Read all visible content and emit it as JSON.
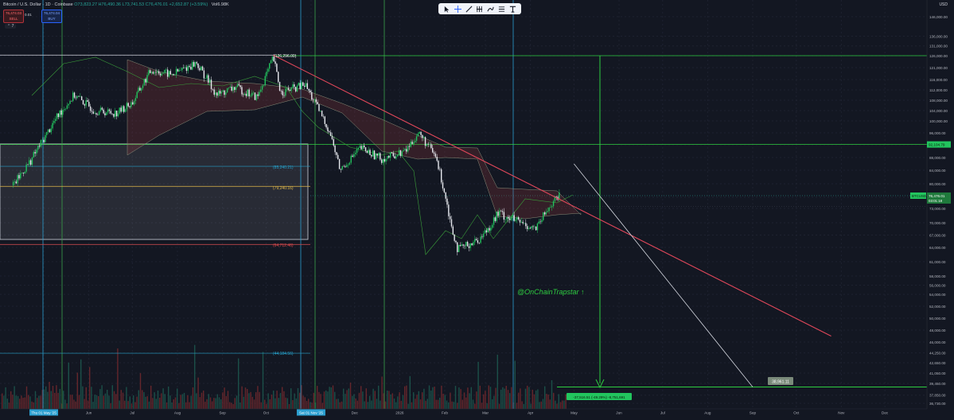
{
  "legend": {
    "symbol": "Bitcoin / U.S. Dollar · 1D · Coinbase",
    "ohlc": "O73,823.27 H76,490.36 L73,741.53 C76,476.01 +2,652.87 (+3.59%)",
    "volume": "Vol6.98K",
    "sell_price": "76,474.03",
    "sell_label": "SELL",
    "spread": "0.01",
    "buy_price": "76,474.04",
    "buy_label": "BUY",
    "collapse": "⌃ 7"
  },
  "currency": "USD",
  "toolbar": [
    "cursor-icon",
    "crosshair-icon",
    "trendline-icon",
    "pitchfork-icon",
    "brush-icon",
    "fib-icon",
    "text-icon"
  ],
  "watermark": "@OnChainTrapstar ↑",
  "chart_data": {
    "type": "candlestick",
    "title": "Bitcoin / U.S. Dollar · 1D · Coinbase",
    "price_axis": [
      "146,000.00",
      "136,000.00",
      "131,000.00",
      "126,000.00",
      "121,000.00",
      "116,000.00",
      "112,000.00",
      "108,000.00",
      "104,000.00",
      "100,000.00",
      "96,000.00",
      "92,000.00",
      "88,000.00",
      "84,000.00",
      "80,000.00",
      "76,000.00",
      "73,000.00",
      "70,000.00",
      "67,000.00",
      "64,000.00",
      "61,000.00",
      "58,000.00",
      "56,000.00",
      "54,000.00",
      "52,000.00",
      "50,000.00",
      "48,000.00",
      "46,000.00",
      "44,250.00",
      "42,650.00",
      "41,050.00",
      "39,450.00",
      "37,850.00",
      "36,730.00"
    ],
    "time_axis": [
      "Thu 01 May '25",
      "Jun",
      "Jul",
      "Aug",
      "Sep",
      "Oct",
      "Sat 01 Nov '25",
      "Dec",
      "2026",
      "Feb",
      "Mar",
      "Apr",
      "May",
      "Jun",
      "Jul",
      "Aug",
      "Sep",
      "Oct",
      "Nov",
      "Dec"
    ],
    "last_price": 76476.01,
    "annotations": {
      "ath_label": "(126,296.00)",
      "level_85": "(85,240.21)",
      "level_79": "(79,240.16)",
      "level_64": "(64,712.46)",
      "level_44": "(44,184.56)",
      "target_label": "38,961.11",
      "measure_label": "-37,516.51 (-49.29%) -8,751,691",
      "right_green_label": "92,104.79",
      "btc_label": "BTCUSD",
      "btc_price": "76,476.01",
      "btc_countdown": "03:01:18"
    },
    "key_levels": [
      126000,
      92104.79,
      85240.21,
      79240.16,
      64712.46,
      44184.56,
      38961.11
    ],
    "trend_line": {
      "from": {
        "date": "2025-10-06",
        "price": 126296
      },
      "to": {
        "date": "2026-10-25",
        "price": 47000
      }
    },
    "projection_line": {
      "from": {
        "date": "2026-05-01",
        "price": 86000
      },
      "to": {
        "date": "2026-09-01",
        "price": 38961
      }
    },
    "price_path": [
      {
        "date": "2025-04-10",
        "price": 79500
      },
      {
        "date": "2025-04-22",
        "price": 87000
      },
      {
        "date": "2025-05-01",
        "price": 94000
      },
      {
        "date": "2025-05-12",
        "price": 103000
      },
      {
        "date": "2025-05-22",
        "price": 110000
      },
      {
        "date": "2025-06-05",
        "price": 104000
      },
      {
        "date": "2025-06-20",
        "price": 103000
      },
      {
        "date": "2025-07-01",
        "price": 107000
      },
      {
        "date": "2025-07-14",
        "price": 120000
      },
      {
        "date": "2025-07-28",
        "price": 118000
      },
      {
        "date": "2025-08-14",
        "price": 123000
      },
      {
        "date": "2025-08-28",
        "price": 110000
      },
      {
        "date": "2025-09-10",
        "price": 113000
      },
      {
        "date": "2025-09-25",
        "price": 109000
      },
      {
        "date": "2025-10-06",
        "price": 125000
      },
      {
        "date": "2025-10-11",
        "price": 111000
      },
      {
        "date": "2025-10-28",
        "price": 114000
      },
      {
        "date": "2025-11-14",
        "price": 96000
      },
      {
        "date": "2025-11-21",
        "price": 84000
      },
      {
        "date": "2025-12-05",
        "price": 91000
      },
      {
        "date": "2025-12-20",
        "price": 87500
      },
      {
        "date": "2026-01-05",
        "price": 90000
      },
      {
        "date": "2026-01-14",
        "price": 96000
      },
      {
        "date": "2026-01-26",
        "price": 88000
      },
      {
        "date": "2026-02-05",
        "price": 70000
      },
      {
        "date": "2026-02-10",
        "price": 63500
      },
      {
        "date": "2026-02-25",
        "price": 66000
      },
      {
        "date": "2026-03-10",
        "price": 72000
      },
      {
        "date": "2026-03-25",
        "price": 70000
      },
      {
        "date": "2026-04-05",
        "price": 68500
      },
      {
        "date": "2026-04-15",
        "price": 74000
      },
      {
        "date": "2026-04-21",
        "price": 76476
      }
    ]
  }
}
